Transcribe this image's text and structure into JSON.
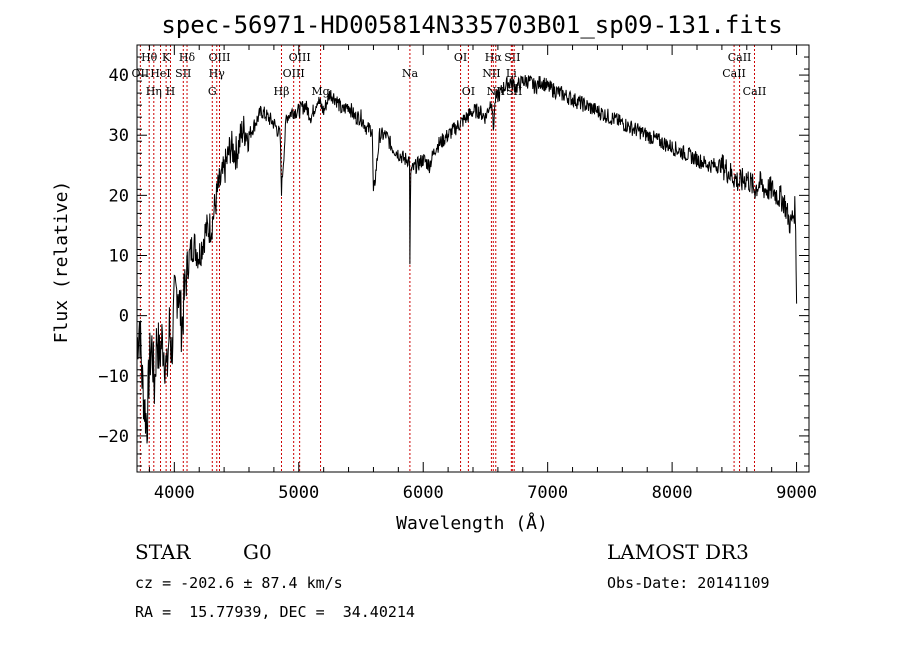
{
  "chart_data": {
    "type": "line",
    "title": "spec-56971-HD005814N335703B01_sp09-131.fits",
    "xlabel": "Wavelength (Å)",
    "ylabel": "Flux (relative)",
    "xlim": [
      3700,
      9100
    ],
    "ylim": [
      -26,
      45
    ],
    "x_ticks": [
      4000,
      5000,
      6000,
      7000,
      8000,
      9000
    ],
    "y_ticks": [
      -20,
      -10,
      0,
      10,
      20,
      30,
      40
    ],
    "grid": false,
    "series": [
      {
        "name": "flux",
        "x": [
          3700,
          3720,
          3740,
          3760,
          3780,
          3800,
          3820,
          3840,
          3860,
          3880,
          3900,
          3920,
          3940,
          3960,
          3980,
          4000,
          4030,
          4060,
          4100,
          4150,
          4200,
          4250,
          4300,
          4350,
          4400,
          4450,
          4500,
          4550,
          4600,
          4650,
          4700,
          4750,
          4800,
          4850,
          4861,
          4900,
          4950,
          5000,
          5050,
          5100,
          5150,
          5200,
          5250,
          5300,
          5350,
          5400,
          5450,
          5500,
          5550,
          5590,
          5600,
          5650,
          5700,
          5750,
          5800,
          5850,
          5890,
          5893,
          5900,
          5950,
          6000,
          6050,
          6100,
          6150,
          6200,
          6250,
          6300,
          6350,
          6400,
          6450,
          6500,
          6550,
          6563,
          6580,
          6620,
          6650,
          6700,
          6750,
          6800,
          6850,
          6900,
          6950,
          7000,
          7100,
          7200,
          7300,
          7400,
          7500,
          7600,
          7700,
          7800,
          7900,
          8000,
          8100,
          8200,
          8300,
          8400,
          8450,
          8498,
          8542,
          8600,
          8662,
          8700,
          8750,
          8800,
          8850,
          8900,
          8950,
          8990,
          9000
        ],
        "values": [
          -5,
          -1,
          -10,
          -15,
          -18,
          -8,
          -5,
          -12,
          -3,
          -7,
          -4,
          -6,
          -10,
          -2,
          -6,
          2,
          5,
          -2,
          8,
          12,
          10,
          14,
          15,
          21,
          24,
          28,
          27,
          31,
          30,
          32,
          34,
          33,
          32,
          30,
          21,
          33,
          34,
          34,
          35,
          33,
          36,
          34,
          37,
          36,
          34,
          35,
          33,
          33,
          31,
          31,
          20,
          30,
          30,
          28,
          27,
          26,
          26,
          8,
          24,
          25,
          26,
          25,
          28,
          29,
          30,
          31,
          32,
          33,
          34,
          34,
          33,
          36,
          31,
          36,
          37,
          38,
          39,
          38,
          39,
          39,
          38,
          39,
          38,
          37,
          36,
          35,
          34,
          33,
          32,
          31,
          30,
          29,
          28,
          27,
          26,
          25,
          25,
          24,
          23,
          22,
          23,
          21,
          22,
          21,
          21,
          20,
          19,
          15,
          18,
          2
        ]
      }
    ],
    "line_markers": [
      {
        "label": "Hθ",
        "x": 3798,
        "row": 1
      },
      {
        "label": "OII",
        "x": 3727,
        "row": 2
      },
      {
        "label": "HeI",
        "x": 3889,
        "row": 2
      },
      {
        "label": "K",
        "x": 3934,
        "row": 1
      },
      {
        "label": "Hη",
        "x": 3835,
        "row": 3
      },
      {
        "label": "H",
        "x": 3969,
        "row": 3
      },
      {
        "label": "SII",
        "x": 4072,
        "row": 2
      },
      {
        "label": "Hδ",
        "x": 4102,
        "row": 1
      },
      {
        "label": "OIII",
        "x": 4363,
        "row": 1
      },
      {
        "label": "Hγ",
        "x": 4341,
        "row": 2
      },
      {
        "label": "G",
        "x": 4305,
        "row": 3
      },
      {
        "label": "Hβ",
        "x": 4861,
        "row": 3
      },
      {
        "label": "OIII",
        "x": 5007,
        "row": 1
      },
      {
        "label": "OIII",
        "x": 4959,
        "row": 2
      },
      {
        "label": "Mg",
        "x": 5175,
        "row": 3
      },
      {
        "label": "Na",
        "x": 5893,
        "row": 2
      },
      {
        "label": "OI",
        "x": 6300,
        "row": 1
      },
      {
        "label": "OI",
        "x": 6363,
        "row": 3
      },
      {
        "label": "Hα",
        "x": 6563,
        "row": 1
      },
      {
        "label": "NII",
        "x": 6548,
        "row": 2
      },
      {
        "label": "NII",
        "x": 6583,
        "row": 3
      },
      {
        "label": "SII",
        "x": 6716,
        "row": 1
      },
      {
        "label": "Li",
        "x": 6708,
        "row": 2
      },
      {
        "label": "SII",
        "x": 6731,
        "row": 3
      },
      {
        "label": "CaII",
        "x": 8542,
        "row": 1
      },
      {
        "label": "CaII",
        "x": 8498,
        "row": 2
      },
      {
        "label": "CaII",
        "x": 8662,
        "row": 3
      }
    ]
  },
  "info": {
    "object_class": "STAR",
    "subclass": "G0",
    "survey": "LAMOST DR3",
    "cz": "cz = -202.6 ± 87.4 km/s",
    "obs_date": "Obs-Date: 20141109",
    "coords": "RA =  15.77939, DEC =  34.40214"
  }
}
